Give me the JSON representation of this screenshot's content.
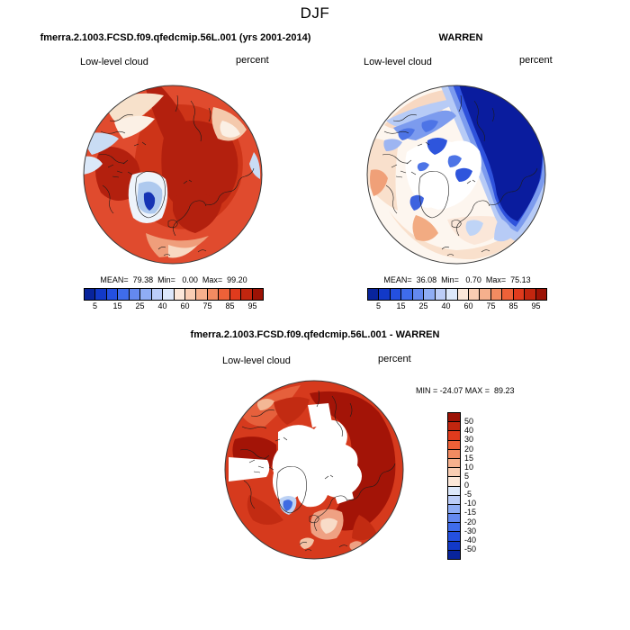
{
  "season_title": "DJF",
  "colors": {
    "palette_blue_to_red": [
      "#08249c",
      "#1239c8",
      "#2450e0",
      "#3f6ceb",
      "#6489f0",
      "#8fadf5",
      "#bccdf8",
      "#dde8fb",
      "#fbe7d9",
      "#f9cdb3",
      "#f6b08d",
      "#f28b61",
      "#ed6138",
      "#e03b1d",
      "#c2260f",
      "#9c1205"
    ],
    "map_outline": "#3a3a3a"
  },
  "panels": {
    "model": {
      "title": "fmerra.2.1003.FCSD.f09.qfedcmip.56L.001 (yrs 2001-2014)",
      "field": "Low-level cloud",
      "units": "percent",
      "stats": "MEAN=  79.38  Min=   0.00  Max=  99.20",
      "colorbar_ticks": [
        "5",
        "15",
        "25",
        "40",
        "60",
        "75",
        "85",
        "95"
      ]
    },
    "obs": {
      "title": "WARREN",
      "field": "Low-level cloud",
      "units": "percent",
      "stats": "MEAN=  36.08  Min=   0.70  Max=  75.13",
      "colorbar_ticks": [
        "5",
        "15",
        "25",
        "40",
        "60",
        "75",
        "85",
        "95"
      ]
    },
    "diff": {
      "title": "fmerra.2.1003.FCSD.f09.qfedcmip.56L.001 - WARREN",
      "field": "Low-level cloud",
      "units": "percent",
      "stats": "MIN = -24.07 MAX =  89.23",
      "colorbar_ticks": [
        "50",
        "40",
        "30",
        "20",
        "15",
        "10",
        "5",
        "0",
        "-5",
        "-10",
        "-15",
        "-20",
        "-30",
        "-40",
        "-50"
      ]
    }
  },
  "chart_data": [
    {
      "type": "heatmap",
      "subtype": "polar-stereographic-contour-map",
      "title": "fmerra.2.1003.FCSD.f09.qfedcmip.56L.001 (yrs 2001-2014)",
      "season": "DJF",
      "variable": "Low-level cloud",
      "units": "percent",
      "stats": {
        "mean": 79.38,
        "min": 0.0,
        "max": 99.2
      },
      "colorbar_tick_labels": [
        5,
        15,
        25,
        40,
        60,
        75,
        85,
        95
      ],
      "colorbar_orientation": "horizontal",
      "n_color_segments": 16,
      "description": "Arctic mostly 75-95% low cloud (reds), small low-cloud pocket over Greenland (blues)"
    },
    {
      "type": "heatmap",
      "subtype": "polar-stereographic-contour-map",
      "title": "WARREN",
      "season": "DJF",
      "variable": "Low-level cloud",
      "units": "percent",
      "stats": {
        "mean": 36.08,
        "min": 0.7,
        "max": 75.13
      },
      "colorbar_tick_labels": [
        5,
        15,
        25,
        40,
        60,
        75,
        85,
        95
      ],
      "colorbar_orientation": "horizontal",
      "n_color_segments": 16,
      "description": "Observed low cloud: low values (deep blues) over Siberian Arctic, pale/peach 40-60% bands elsewhere, white where no data over land"
    },
    {
      "type": "heatmap",
      "subtype": "polar-stereographic-contour-map",
      "title": "fmerra.2.1003.FCSD.f09.qfedcmip.56L.001 - WARREN",
      "season": "DJF",
      "variable": "Low-level cloud",
      "units": "percent",
      "stats": {
        "min": -24.07,
        "max": 89.23
      },
      "colorbar_tick_labels": [
        50,
        40,
        30,
        20,
        15,
        10,
        5,
        0,
        -5,
        -10,
        -15,
        -20,
        -30,
        -40,
        -50
      ],
      "colorbar_orientation": "vertical",
      "n_color_segments": 16,
      "description": "Model minus observations: strong positive bias (reds, 20-50+) over most of Arctic, white where obs missing, small negative spot near south Greenland"
    }
  ]
}
